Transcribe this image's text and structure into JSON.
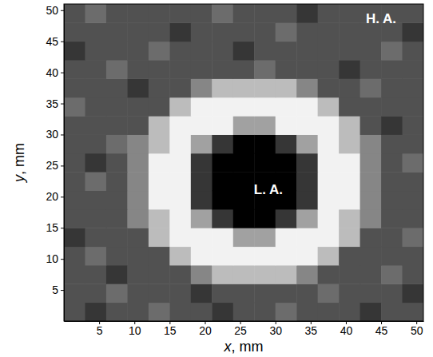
{
  "chart_data": {
    "type": "heatmap",
    "xlabel": "x, mm",
    "ylabel": "y, mm",
    "x": [
      1.5,
      4.5,
      7.5,
      10.5,
      13.5,
      16.5,
      19.5,
      22.5,
      25.5,
      28.5,
      31.5,
      34.5,
      37.5,
      40.5,
      43.5,
      46.5,
      49.5
    ],
    "y": [
      1.5,
      4.5,
      7.5,
      10.5,
      13.5,
      16.5,
      19.5,
      22.5,
      25.5,
      28.5,
      31.5,
      34.5,
      37.5,
      40.5,
      43.5,
      46.5,
      49.5
    ],
    "z": [
      [
        3,
        2,
        3,
        3,
        4,
        3,
        3,
        2,
        3,
        3,
        4,
        3,
        3,
        3,
        2,
        3,
        3
      ],
      [
        3,
        3,
        4,
        3,
        3,
        3,
        2,
        3,
        3,
        3,
        3,
        3,
        4,
        3,
        3,
        3,
        2
      ],
      [
        3,
        3,
        2,
        3,
        3,
        3,
        5,
        7,
        7,
        7,
        7,
        5,
        3,
        3,
        3,
        4,
        3
      ],
      [
        3,
        4,
        3,
        3,
        3,
        7,
        9,
        9,
        9,
        9,
        9,
        9,
        7,
        3,
        3,
        3,
        3
      ],
      [
        2,
        3,
        3,
        3,
        7,
        9,
        9,
        9,
        6,
        6,
        9,
        9,
        9,
        7,
        3,
        3,
        4
      ],
      [
        3,
        3,
        3,
        5,
        7,
        9,
        6,
        2,
        0,
        0,
        2,
        6,
        9,
        7,
        5,
        3,
        3
      ],
      [
        3,
        3,
        3,
        5,
        9,
        9,
        2,
        0,
        0,
        0,
        0,
        2,
        9,
        9,
        5,
        3,
        3
      ],
      [
        3,
        4,
        3,
        5,
        9,
        9,
        2,
        0,
        0,
        0,
        0,
        2,
        9,
        9,
        5,
        3,
        3
      ],
      [
        3,
        2,
        3,
        5,
        9,
        9,
        2,
        0,
        0,
        0,
        0,
        2,
        9,
        9,
        5,
        3,
        4
      ],
      [
        3,
        3,
        4,
        5,
        7,
        9,
        6,
        2,
        0,
        0,
        2,
        6,
        9,
        7,
        5,
        3,
        3
      ],
      [
        3,
        3,
        3,
        3,
        7,
        9,
        9,
        9,
        6,
        6,
        9,
        9,
        9,
        7,
        3,
        2,
        3
      ],
      [
        4,
        3,
        3,
        3,
        3,
        7,
        9,
        9,
        9,
        9,
        9,
        9,
        7,
        3,
        3,
        3,
        3
      ],
      [
        3,
        3,
        3,
        2,
        3,
        3,
        5,
        7,
        7,
        7,
        7,
        5,
        3,
        3,
        4,
        3,
        3
      ],
      [
        3,
        3,
        4,
        3,
        3,
        3,
        3,
        3,
        3,
        4,
        3,
        3,
        3,
        2,
        3,
        3,
        3
      ],
      [
        2,
        3,
        3,
        3,
        4,
        3,
        3,
        3,
        2,
        3,
        3,
        3,
        3,
        3,
        3,
        4,
        3
      ],
      [
        3,
        3,
        3,
        3,
        3,
        2,
        3,
        3,
        3,
        3,
        4,
        3,
        3,
        3,
        3,
        3,
        2
      ],
      [
        3,
        4,
        3,
        3,
        3,
        3,
        3,
        4,
        3,
        3,
        3,
        2,
        3,
        3,
        3,
        3,
        3
      ]
    ],
    "xlim": [
      0,
      51
    ],
    "ylim": [
      0,
      51
    ],
    "xticks": [
      5,
      10,
      15,
      20,
      25,
      30,
      35,
      40,
      45,
      50
    ],
    "yticks": [
      5,
      10,
      15,
      20,
      25,
      30,
      35,
      40,
      45,
      50
    ],
    "annotations": [
      {
        "text": "L. A.",
        "x": 29,
        "y": 21
      },
      {
        "text": "H. A.",
        "x": 45,
        "y": 48.5
      }
    ]
  }
}
